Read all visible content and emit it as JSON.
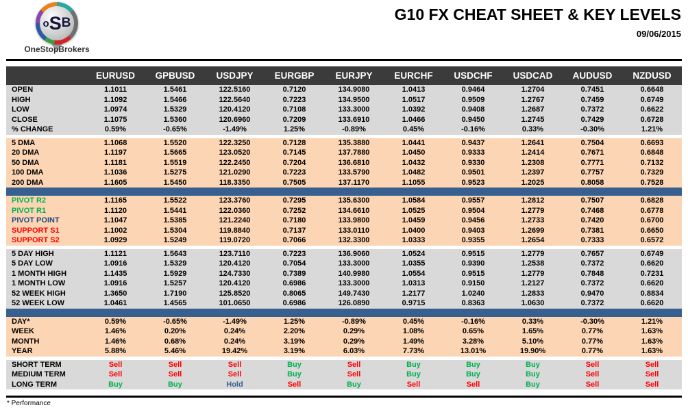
{
  "header": {
    "title": "G10 FX CHEAT SHEET & KEY LEVELS",
    "date": "09/06/2015",
    "logo": {
      "prefix": "o",
      "mid": "S",
      "suffix": "B",
      "brand": "OneStopBrokers"
    }
  },
  "footer": {
    "note": "* Performance"
  },
  "colors": {
    "header_bar": "#3B3B3B",
    "gray_block": "#D9D9D9",
    "peach_block": "#FCD5B4",
    "separator_blue": "#376091",
    "buy_green": "#00B050",
    "sell_red": "#FF0000",
    "hold_blue": "#376091",
    "pivot_point_navy": "#1F497D"
  },
  "chart_data": {
    "type": "table",
    "title": "G10 FX CHEAT SHEET & KEY LEVELS",
    "date": "09/06/2015",
    "columns": [
      "EURUSD",
      "GPBUSD",
      "USDJPY",
      "EURGBP",
      "EURJPY",
      "EURCHF",
      "USDCHF",
      "USDCAD",
      "AUDUSD",
      "NZDUSD"
    ],
    "sections": [
      {
        "id": "ohlc",
        "bg": "gray",
        "rows": [
          {
            "label": "OPEN",
            "values": [
              "1.1011",
              "1.5461",
              "122.5160",
              "0.7120",
              "134.9080",
              "1.0413",
              "0.9464",
              "1.2704",
              "0.7451",
              "0.6648"
            ]
          },
          {
            "label": "HIGH",
            "values": [
              "1.1092",
              "1.5466",
              "122.5640",
              "0.7223",
              "134.9500",
              "1.0517",
              "0.9509",
              "1.2767",
              "0.7459",
              "0.6749"
            ]
          },
          {
            "label": "LOW",
            "values": [
              "1.0974",
              "1.5329",
              "120.4120",
              "0.7108",
              "133.3000",
              "1.0392",
              "0.9408",
              "1.2687",
              "0.7372",
              "0.6622"
            ]
          },
          {
            "label": "CLOSE",
            "values": [
              "1.1075",
              "1.5360",
              "120.6960",
              "0.7209",
              "133.6910",
              "1.0466",
              "0.9450",
              "1.2745",
              "0.7429",
              "0.6728"
            ]
          },
          {
            "label": "% CHANGE",
            "values": [
              "0.59%",
              "-0.65%",
              "-1.49%",
              "1.25%",
              "-0.89%",
              "0.45%",
              "-0.16%",
              "0.33%",
              "-0.30%",
              "1.21%"
            ]
          }
        ]
      },
      {
        "id": "dma",
        "bg": "peach",
        "gap_before": "white",
        "rows": [
          {
            "label": "5 DMA",
            "values": [
              "1.1068",
              "1.5520",
              "122.3250",
              "0.7128",
              "135.3880",
              "1.0441",
              "0.9437",
              "1.2641",
              "0.7504",
              "0.6693"
            ]
          },
          {
            "label": "20 DMA",
            "values": [
              "1.1197",
              "1.5665",
              "123.0520",
              "0.7145",
              "137.7880",
              "1.0450",
              "0.9333",
              "1.2414",
              "0.7671",
              "0.6848"
            ]
          },
          {
            "label": "50 DMA",
            "values": [
              "1.1181",
              "1.5519",
              "122.2450",
              "0.7204",
              "136.6810",
              "1.0432",
              "0.9330",
              "1.2308",
              "0.7771",
              "0.7132"
            ]
          },
          {
            "label": "100 DMA",
            "values": [
              "1.1036",
              "1.5275",
              "121.0290",
              "0.7223",
              "133.5790",
              "1.0482",
              "0.9501",
              "1.2397",
              "0.7757",
              "0.7329"
            ]
          },
          {
            "label": "200 DMA",
            "values": [
              "1.1605",
              "1.5450",
              "118.3350",
              "0.7505",
              "137.1170",
              "1.1055",
              "0.9523",
              "1.2025",
              "0.8058",
              "0.7528"
            ]
          }
        ]
      },
      {
        "id": "pivots",
        "bg": "peach",
        "gap_before": "blue",
        "rows": [
          {
            "label": "PIVOT R2",
            "label_color": "green",
            "values": [
              "1.1165",
              "1.5522",
              "123.3760",
              "0.7295",
              "135.6300",
              "1.0584",
              "0.9557",
              "1.2812",
              "0.7507",
              "0.6828"
            ]
          },
          {
            "label": "PIVOT R1",
            "label_color": "green",
            "values": [
              "1.1120",
              "1.5441",
              "122.0360",
              "0.7252",
              "134.6610",
              "1.0525",
              "0.9504",
              "1.2779",
              "0.7468",
              "0.6778"
            ]
          },
          {
            "label": "PIVOT POINT",
            "label_color": "navy",
            "values": [
              "1.1047",
              "1.5385",
              "121.2240",
              "0.7180",
              "133.9800",
              "1.0459",
              "0.9456",
              "1.2733",
              "0.7420",
              "0.6700"
            ]
          },
          {
            "label": "SUPPORT S1",
            "label_color": "red",
            "values": [
              "1.1002",
              "1.5304",
              "119.8840",
              "0.7137",
              "133.0110",
              "1.0400",
              "0.9403",
              "1.2699",
              "0.7381",
              "0.6650"
            ]
          },
          {
            "label": "SUPPORT S2",
            "label_color": "red",
            "values": [
              "1.0929",
              "1.5249",
              "119.0720",
              "0.7066",
              "132.3300",
              "1.0333",
              "0.9355",
              "1.2654",
              "0.7333",
              "0.6572"
            ]
          }
        ]
      },
      {
        "id": "ranges",
        "bg": "gray",
        "gap_before": "white",
        "rows": [
          {
            "label": "5 DAY HIGH",
            "values": [
              "1.1121",
              "1.5643",
              "123.7110",
              "0.7223",
              "136.9060",
              "1.0524",
              "0.9515",
              "1.2779",
              "0.7657",
              "0.6749"
            ]
          },
          {
            "label": "5 DAY LOW",
            "values": [
              "1.0916",
              "1.5329",
              "120.4120",
              "0.7054",
              "133.3000",
              "1.0355",
              "0.9390",
              "1.2538",
              "0.7372",
              "0.6620"
            ]
          },
          {
            "label": "1 MONTH HIGH",
            "values": [
              "1.1435",
              "1.5929",
              "124.7330",
              "0.7389",
              "140.9980",
              "1.0554",
              "0.9515",
              "1.2779",
              "0.7848",
              "0.7231"
            ]
          },
          {
            "label": "1 MONTH LOW",
            "values": [
              "1.0916",
              "1.5257",
              "120.4120",
              "0.6986",
              "133.3000",
              "1.0313",
              "0.9150",
              "1.2127",
              "0.7372",
              "0.6620"
            ]
          },
          {
            "label": "52 WEEK HIGH",
            "values": [
              "1.3650",
              "1.7190",
              "125.8520",
              "0.8065",
              "149.7430",
              "1.2177",
              "1.0240",
              "1.2833",
              "0.9470",
              "0.8834"
            ]
          },
          {
            "label": "52 WEEK LOW",
            "values": [
              "1.0461",
              "1.4565",
              "101.0650",
              "0.6986",
              "126.0890",
              "0.9715",
              "0.8363",
              "1.0630",
              "0.7372",
              "0.6620"
            ]
          }
        ]
      },
      {
        "id": "performance",
        "bg": "peach",
        "gap_before": "blue",
        "rows": [
          {
            "label": "DAY*",
            "values": [
              "0.59%",
              "-0.65%",
              "-1.49%",
              "1.25%",
              "-0.89%",
              "0.45%",
              "-0.16%",
              "0.33%",
              "-0.30%",
              "1.21%"
            ]
          },
          {
            "label": "WEEK",
            "values": [
              "1.46%",
              "0.20%",
              "0.24%",
              "2.20%",
              "0.29%",
              "1.08%",
              "0.65%",
              "1.65%",
              "0.77%",
              "1.63%"
            ]
          },
          {
            "label": "MONTH",
            "values": [
              "1.46%",
              "0.68%",
              "0.24%",
              "3.19%",
              "0.29%",
              "1.49%",
              "3.28%",
              "5.10%",
              "0.77%",
              "1.63%"
            ]
          },
          {
            "label": "YEAR",
            "values": [
              "5.88%",
              "5.46%",
              "19.42%",
              "3.19%",
              "6.03%",
              "7.73%",
              "13.01%",
              "19.90%",
              "0.77%",
              "1.63%"
            ]
          }
        ]
      },
      {
        "id": "signals",
        "bg": "gray",
        "gap_before": "white",
        "value_style": "signal",
        "rows": [
          {
            "label": "SHORT TERM",
            "values": [
              "Sell",
              "Sell",
              "Sell",
              "Buy",
              "Sell",
              "Buy",
              "Buy",
              "Buy",
              "Sell",
              "Sell"
            ]
          },
          {
            "label": "MEDIUM TERM",
            "values": [
              "Sell",
              "Sell",
              "Sell",
              "Buy",
              "Sell",
              "Buy",
              "Buy",
              "Buy",
              "Sell",
              "Sell"
            ]
          },
          {
            "label": "LONG TERM",
            "values": [
              "Buy",
              "Buy",
              "Hold",
              "Sell",
              "Buy",
              "Sell",
              "Sell",
              "Buy",
              "Sell",
              "Sell"
            ]
          }
        ]
      }
    ]
  }
}
